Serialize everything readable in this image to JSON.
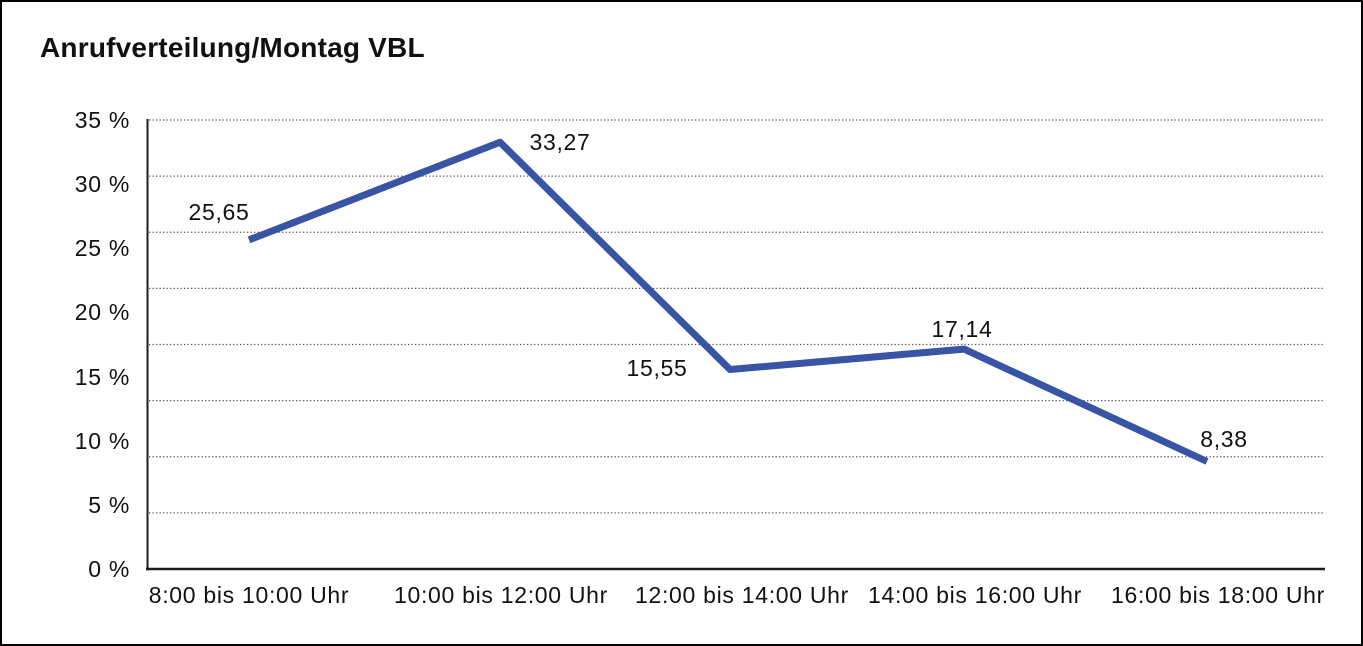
{
  "page": {
    "background": "#ffffff",
    "frame_border_color": "#000000"
  },
  "chart_data": {
    "type": "line",
    "title": "Anrufverteilung/Montag VBL",
    "categories": [
      "8:00 bis 10:00 Uhr",
      "10:00 bis 12:00 Uhr",
      "12:00 bis 14:00 Uhr",
      "14:00 bis 16:00 Uhr",
      "16:00 bis 18:00 Uhr"
    ],
    "values": [
      25.65,
      33.27,
      15.55,
      17.14,
      8.38
    ],
    "data_labels": [
      "25,65",
      "33,27",
      "15,55",
      "17,14",
      "8,38"
    ],
    "y_tick_labels": [
      "0 %",
      "5 %",
      "10 %",
      "15 %",
      "20 %",
      "25 %",
      "30 %",
      "35 %"
    ],
    "ylim": [
      0,
      35
    ],
    "y_tick_step": 5,
    "horizontal_gridline_divisions": 8,
    "gridline_style": "dotted",
    "grid": "horizontal only",
    "legend_position": "none",
    "xlabel": "",
    "ylabel": "",
    "series_color": "#3854A4",
    "axis_color": "#1c1c1c",
    "gridline_color": "#555555",
    "text_color": "#111111"
  }
}
